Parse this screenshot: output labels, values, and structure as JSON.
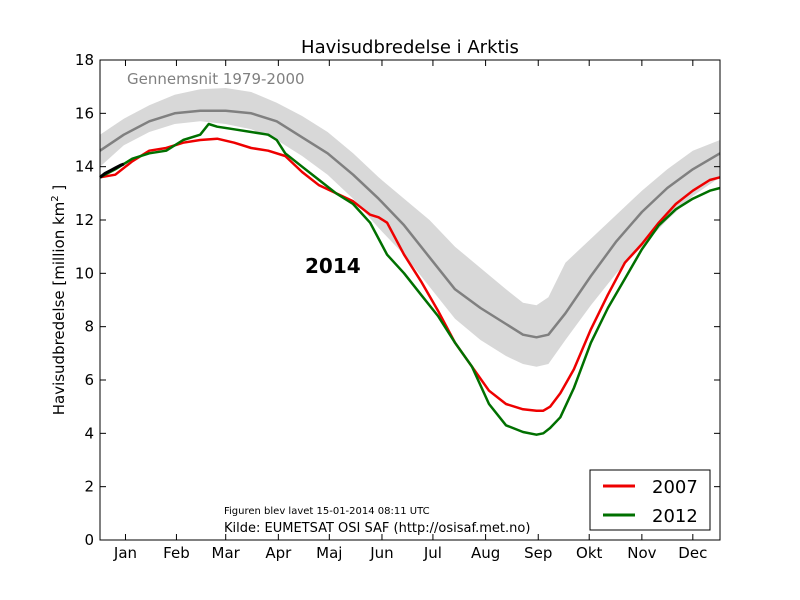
{
  "chart_data": {
    "type": "line",
    "title": "Havisudbredelse i Arktis",
    "ylabel": "Havisudbredelse [million km",
    "ylabel_sup": "2",
    "ylabel_end": " ]",
    "ylim": [
      0,
      18
    ],
    "yticks": [
      0,
      2,
      4,
      6,
      8,
      10,
      12,
      14,
      16,
      18
    ],
    "xlim": [
      1,
      366
    ],
    "months": [
      {
        "label": "Jan",
        "day": 16
      },
      {
        "label": "Feb",
        "day": 46
      },
      {
        "label": "Mar",
        "day": 75
      },
      {
        "label": "Apr",
        "day": 106
      },
      {
        "label": "Maj",
        "day": 136
      },
      {
        "label": "Jun",
        "day": 167
      },
      {
        "label": "Jul",
        "day": 197
      },
      {
        "label": "Aug",
        "day": 228
      },
      {
        "label": "Sep",
        "day": 259
      },
      {
        "label": "Okt",
        "day": 289
      },
      {
        "label": "Nov",
        "day": 320
      },
      {
        "label": "Dec",
        "day": 350
      }
    ],
    "average_label": "Gennemsnit 1979-2000",
    "current_year_label": "2014",
    "created_note": "Figuren blev lavet 15-01-2014 08:11 UTC",
    "source": "Kilde: EUMETSAT OSI SAF (http://osisaf.met.no)",
    "legend_position": "lower-right",
    "band": {
      "x": [
        1,
        15,
        30,
        45,
        60,
        75,
        90,
        105,
        120,
        135,
        150,
        165,
        180,
        195,
        210,
        225,
        240,
        250,
        258,
        265,
        275,
        290,
        305,
        320,
        335,
        350,
        366
      ],
      "upper": [
        15.2,
        15.8,
        16.3,
        16.7,
        16.9,
        16.95,
        16.8,
        16.4,
        15.9,
        15.3,
        14.5,
        13.6,
        12.8,
        12.0,
        11.0,
        10.2,
        9.4,
        8.9,
        8.8,
        9.1,
        10.4,
        11.3,
        12.2,
        13.1,
        13.9,
        14.6,
        15.0
      ],
      "lower": [
        14.0,
        14.8,
        15.3,
        15.6,
        15.7,
        15.6,
        15.4,
        15.0,
        14.4,
        13.7,
        12.8,
        11.7,
        10.7,
        9.5,
        8.3,
        7.5,
        6.9,
        6.6,
        6.5,
        6.6,
        7.5,
        8.8,
        10.0,
        11.0,
        12.0,
        12.9,
        13.6
      ]
    },
    "series": [
      {
        "name": "Gennemsnit 1979-2000",
        "color": "#808080",
        "x": [
          1,
          15,
          30,
          45,
          60,
          75,
          90,
          105,
          120,
          135,
          150,
          165,
          180,
          195,
          210,
          225,
          240,
          250,
          258,
          265,
          275,
          290,
          305,
          320,
          335,
          350,
          366
        ],
        "y": [
          14.6,
          15.2,
          15.7,
          16.0,
          16.1,
          16.1,
          16.0,
          15.7,
          15.1,
          14.5,
          13.7,
          12.8,
          11.8,
          10.6,
          9.4,
          8.7,
          8.1,
          7.7,
          7.6,
          7.7,
          8.5,
          9.9,
          11.2,
          12.3,
          13.2,
          13.9,
          14.5
        ]
      },
      {
        "name": "2007",
        "color": "#ee0000",
        "x": [
          1,
          10,
          20,
          30,
          40,
          50,
          60,
          70,
          80,
          90,
          100,
          110,
          120,
          130,
          140,
          150,
          160,
          165,
          170,
          180,
          190,
          200,
          210,
          220,
          230,
          240,
          250,
          258,
          262,
          266,
          272,
          280,
          290,
          300,
          310,
          320,
          330,
          340,
          350,
          360,
          366
        ],
        "y": [
          13.6,
          13.7,
          14.2,
          14.6,
          14.7,
          14.9,
          15.0,
          15.05,
          14.9,
          14.7,
          14.6,
          14.4,
          13.8,
          13.3,
          13.0,
          12.7,
          12.2,
          12.1,
          11.9,
          10.7,
          9.7,
          8.6,
          7.4,
          6.5,
          5.6,
          5.1,
          4.9,
          4.85,
          4.85,
          5.0,
          5.5,
          6.4,
          7.9,
          9.2,
          10.4,
          11.1,
          11.9,
          12.6,
          13.1,
          13.5,
          13.6
        ]
      },
      {
        "name": "2012",
        "color": "#007000",
        "x": [
          1,
          10,
          20,
          30,
          40,
          50,
          60,
          65,
          70,
          80,
          90,
          100,
          105,
          110,
          120,
          130,
          140,
          150,
          160,
          170,
          180,
          190,
          200,
          210,
          220,
          230,
          240,
          250,
          258,
          262,
          266,
          272,
          280,
          290,
          300,
          310,
          320,
          330,
          340,
          350,
          360,
          366
        ],
        "y": [
          13.6,
          13.9,
          14.3,
          14.5,
          14.6,
          15.0,
          15.2,
          15.6,
          15.5,
          15.4,
          15.3,
          15.2,
          15.0,
          14.5,
          14.0,
          13.5,
          13.0,
          12.6,
          11.9,
          10.7,
          10.0,
          9.2,
          8.4,
          7.4,
          6.5,
          5.1,
          4.3,
          4.05,
          3.95,
          4.0,
          4.2,
          4.6,
          5.7,
          7.4,
          8.7,
          9.8,
          10.9,
          11.8,
          12.4,
          12.8,
          13.1,
          13.2
        ]
      },
      {
        "name": "2014",
        "color": "#000000",
        "x": [
          1,
          4,
          7,
          10,
          13,
          15
        ],
        "y": [
          13.6,
          13.75,
          13.85,
          13.95,
          14.05,
          14.1
        ]
      }
    ],
    "legend": [
      {
        "label": "2007",
        "color": "#ee0000"
      },
      {
        "label": "2012",
        "color": "#007000"
      }
    ]
  }
}
